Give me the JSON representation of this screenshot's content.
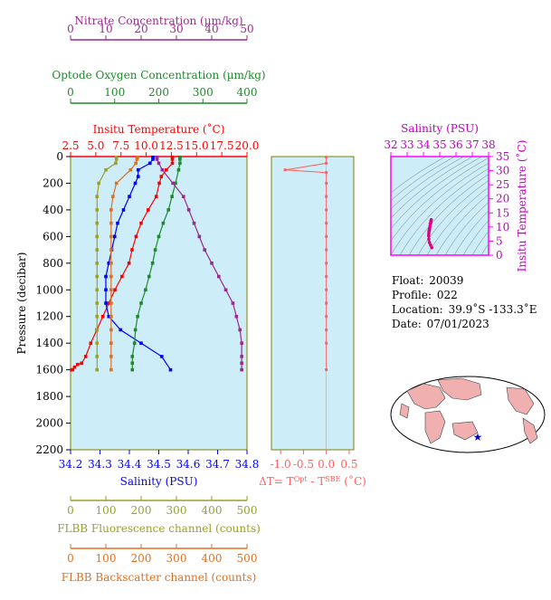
{
  "colors": {
    "nitrate": "#9b2a8e",
    "oxygen": "#1e8a2c",
    "temperature": "#ff0000",
    "salinity": "#0000ff",
    "fluorescence": "#9aa02a",
    "backscatter": "#e07020",
    "deltaT": "#ff6060",
    "ts": "#e0007f",
    "panel_bg": "#cdeef8",
    "axis_olive": "#808000"
  },
  "axes": {
    "nitrate_label": "Nitrate Concentration (µm/kg)",
    "nitrate_ticks": [
      "0",
      "10",
      "20",
      "30",
      "40",
      "50"
    ],
    "oxygen_label": "Optode Oxygen Concentration (µm/kg)",
    "oxygen_ticks": [
      "0",
      "100",
      "200",
      "300",
      "400"
    ],
    "temperature_label": "Insitu Temperature (˚C)",
    "temperature_ticks": [
      "2.5",
      "5.0",
      "7.5",
      "10.0",
      "12.5",
      "15.0",
      "17.5",
      "20.0"
    ],
    "salinity_label": "Salinity (PSU)",
    "salinity_ticks": [
      "34.2",
      "34.3",
      "34.4",
      "34.5",
      "34.6",
      "34.7",
      "34.8"
    ],
    "pressure_label": "Pressure (decibar)",
    "pressure_ticks": [
      "0",
      "200",
      "400",
      "600",
      "800",
      "1000",
      "1200",
      "1400",
      "1600",
      "1800",
      "2000",
      "2200"
    ],
    "fluor_label": "FLBB Fluorescence channel (counts)",
    "fluor_ticks": [
      "0",
      "100",
      "200",
      "300",
      "400",
      "500"
    ],
    "backscatter_label": "FLBB Backscatter channel (counts)",
    "backscatter_ticks": [
      "0",
      "100",
      "200",
      "300",
      "400",
      "500"
    ],
    "dt_label_prefix": "ΔT= T",
    "dt_label_sup1": "Opt",
    "dt_label_mid": " - T",
    "dt_label_sup2": "SBE",
    "dt_label_suffix": " (˚C)",
    "dt_ticks": [
      "-1.0",
      "-0.5",
      "0.0",
      "0.5"
    ],
    "ts_sal_label": "Salinity (PSU)",
    "ts_sal_ticks": [
      "32",
      "33",
      "34",
      "35",
      "36",
      "37",
      "38"
    ],
    "ts_temp_label": "Insitu Temperature (˚C)",
    "ts_temp_ticks": [
      "0",
      "5",
      "10",
      "15",
      "20",
      "25",
      "30",
      "35"
    ]
  },
  "info": {
    "float_label": "Float:",
    "float_value": "20039",
    "profile_label": "Profile:",
    "profile_value": "022",
    "location_label": "Location:",
    "location_value": "39.9˚S  -133.3˚E",
    "date_label": "Date:",
    "date_value": "07/01/2023"
  },
  "chart_data": [
    {
      "type": "line",
      "title": "",
      "ylabel": "Pressure (decibar)",
      "ylim": [
        2200,
        0
      ],
      "series": [
        {
          "name": "Insitu Temperature (˚C)",
          "xlim": [
            2.5,
            20.0
          ],
          "x": [
            12.6,
            12.6,
            12.6,
            12.0,
            11.5,
            11.3,
            11.0,
            10.2,
            9.5,
            9.0,
            8.6,
            8.3,
            7.6,
            6.9,
            6.3,
            5.7,
            5.1,
            4.5,
            4.0,
            3.6,
            3.2,
            2.9,
            2.7,
            2.6
          ],
          "y": [
            5,
            20,
            50,
            100,
            150,
            200,
            300,
            400,
            500,
            600,
            700,
            800,
            900,
            1000,
            1100,
            1200,
            1300,
            1400,
            1500,
            1550,
            1560,
            1580,
            1600,
            1600
          ]
        },
        {
          "name": "Salinity (PSU)",
          "xlim": [
            34.2,
            34.8
          ],
          "x": [
            34.48,
            34.48,
            34.47,
            34.43,
            34.43,
            34.42,
            34.4,
            34.38,
            34.36,
            34.35,
            34.34,
            34.33,
            34.32,
            34.32,
            34.32,
            34.33,
            34.37,
            34.44,
            34.51,
            34.54
          ],
          "y": [
            5,
            20,
            50,
            100,
            150,
            200,
            300,
            400,
            500,
            600,
            700,
            800,
            900,
            1000,
            1100,
            1200,
            1300,
            1400,
            1500,
            1600
          ]
        },
        {
          "name": "Optode Oxygen Concentration (µm/kg)",
          "xlim": [
            0,
            400
          ],
          "x": [
            248,
            248,
            248,
            245,
            238,
            230,
            222,
            210,
            200,
            192,
            186,
            178,
            170,
            160,
            152,
            147,
            145,
            140,
            140,
            140
          ],
          "y": [
            5,
            20,
            50,
            100,
            200,
            300,
            400,
            500,
            600,
            700,
            800,
            900,
            1000,
            1100,
            1200,
            1300,
            1400,
            1500,
            1550,
            1600
          ]
        },
        {
          "name": "Nitrate Concentration (µm/kg)",
          "xlim": [
            0,
            50
          ],
          "x": [
            24.5,
            24.5,
            25,
            26,
            29,
            32,
            33.5,
            35,
            36.5,
            38,
            40,
            42,
            44,
            46,
            47,
            48,
            48.5,
            48.5,
            48.5,
            48.5
          ],
          "y": [
            5,
            20,
            50,
            100,
            200,
            300,
            400,
            500,
            600,
            700,
            800,
            900,
            1000,
            1100,
            1200,
            1300,
            1400,
            1500,
            1550,
            1600
          ]
        },
        {
          "name": "FLBB Fluorescence channel (counts)",
          "xlim": [
            0,
            500
          ],
          "x": [
            130,
            130,
            128,
            100,
            80,
            75,
            75,
            75,
            75,
            75,
            75,
            75,
            75,
            75,
            75,
            75,
            75,
            75,
            75
          ],
          "y": [
            5,
            20,
            50,
            100,
            200,
            300,
            400,
            500,
            600,
            700,
            800,
            900,
            1000,
            1100,
            1200,
            1300,
            1400,
            1500,
            1600
          ]
        },
        {
          "name": "FLBB Backscatter channel (counts)",
          "xlim": [
            0,
            500
          ],
          "x": [
            190,
            188,
            185,
            170,
            130,
            120,
            115,
            115,
            115,
            115,
            115,
            115,
            115,
            115,
            115,
            115,
            115,
            115,
            115
          ],
          "y": [
            5,
            20,
            50,
            100,
            200,
            300,
            400,
            500,
            600,
            700,
            800,
            900,
            1000,
            1100,
            1200,
            1300,
            1400,
            1500,
            1600
          ]
        }
      ]
    },
    {
      "type": "line",
      "title": "",
      "xlabel": "ΔT= TOpt - TSBE (˚C)",
      "xlim": [
        -1.2,
        0.6
      ],
      "ylim": [
        2200,
        0
      ],
      "series": [
        {
          "name": "ΔT",
          "x": [
            0.0,
            0.0,
            -0.9,
            0.0,
            0.0,
            0.0,
            0.0,
            0.0,
            0.0,
            0.0,
            0.0,
            0.0,
            0.0,
            0.0,
            0.0,
            0.0,
            0.0,
            0.0
          ],
          "y": [
            5,
            50,
            100,
            120,
            200,
            300,
            400,
            500,
            600,
            700,
            800,
            900,
            1000,
            1100,
            1200,
            1300,
            1400,
            1600
          ]
        }
      ]
    },
    {
      "type": "scatter",
      "title": "",
      "xlabel": "Salinity (PSU)",
      "ylabel": "Insitu Temperature (˚C)",
      "xlim": [
        32,
        38
      ],
      "ylim": [
        0,
        35
      ],
      "series": [
        {
          "name": "T-S",
          "x": [
            34.48,
            34.47,
            34.46,
            34.45,
            34.43,
            34.42,
            34.4,
            34.38,
            34.36,
            34.35,
            34.34,
            34.33,
            34.32,
            34.33,
            34.37,
            34.44,
            34.51
          ],
          "y": [
            12.6,
            12.4,
            12.0,
            11.5,
            11.3,
            11.0,
            10.2,
            9.5,
            9.0,
            8.6,
            8.3,
            7.6,
            6.9,
            5.7,
            4.5,
            3.6,
            2.7
          ]
        }
      ]
    }
  ]
}
